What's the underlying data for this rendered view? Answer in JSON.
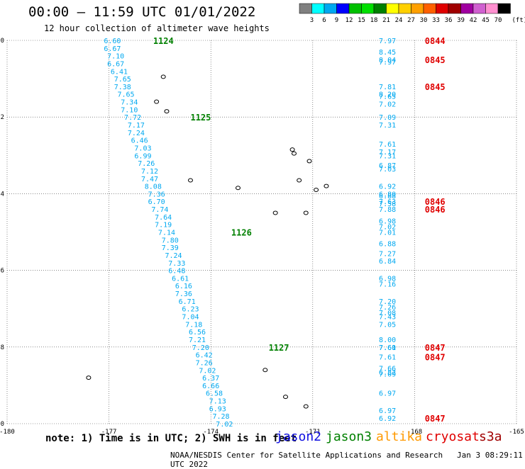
{
  "header": {
    "title": "00:00 – 11:59 UTC 01/01/2022",
    "subtitle": "12 hour collection of altimeter wave heights"
  },
  "colorbar": {
    "labels": [
      "3",
      "6",
      "9",
      "12",
      "15",
      "18",
      "21",
      "24",
      "27",
      "30",
      "33",
      "36",
      "39",
      "42",
      "45",
      "70"
    ],
    "unit": "(ft)",
    "colors": [
      "#808080",
      "#00ffff",
      "#00a8f0",
      "#0000ff",
      "#00c000",
      "#00e000",
      "#008000",
      "#ffff00",
      "#ffd000",
      "#ffa000",
      "#ff6000",
      "#e00000",
      "#a00000",
      "#a000a0",
      "#d060d0",
      "#ff90d0",
      "#000000"
    ]
  },
  "footer": {
    "note": "note:  1) Time is in UTC;  2) SWH is in feet",
    "credit": "NOAA/NESDIS Center for Satellite Applications and Research",
    "timestamp": "Jan  3 08:29:11 UTC 2022"
  },
  "legend": [
    {
      "label": "jason2",
      "color": "#1010e0"
    },
    {
      "label": "jason3",
      "color": "#008000"
    },
    {
      "label": "altika",
      "color": "#ff9900"
    },
    {
      "label": "cryosat",
      "color": "#e00000"
    },
    {
      "label": "s3a",
      "color": "#a00000"
    }
  ],
  "chart_data": {
    "type": "scatter",
    "xlim": [
      -180,
      -165
    ],
    "ylim": [
      -10,
      0
    ],
    "x_ticks": [
      "-180",
      "-177",
      "-174",
      "-171",
      "-168",
      "-165"
    ],
    "y_ticks": [
      "0",
      "-2",
      "-4",
      "-6",
      "-8",
      "-10"
    ],
    "grid": true,
    "series": [
      {
        "name": "jason3",
        "value_color": "#00a8f0",
        "time_color": "#008000",
        "points": [
          {
            "x": -176.9,
            "y": 0.0,
            "label": "6.60"
          },
          {
            "x": -176.9,
            "y": -0.2,
            "label": "6.67"
          },
          {
            "x": -176.8,
            "y": -0.4,
            "label": "7.10"
          },
          {
            "x": -176.8,
            "y": -0.6,
            "label": "6.67"
          },
          {
            "x": -176.7,
            "y": -0.8,
            "label": "6.41"
          },
          {
            "x": -176.6,
            "y": -1.0,
            "label": "7.65"
          },
          {
            "x": -176.6,
            "y": -1.2,
            "label": "7.38"
          },
          {
            "x": -176.5,
            "y": -1.4,
            "label": "7.65"
          },
          {
            "x": -176.4,
            "y": -1.6,
            "label": "7.34"
          },
          {
            "x": -176.4,
            "y": -1.8,
            "label": "7.10"
          },
          {
            "x": -176.3,
            "y": -2.0,
            "label": "7.72"
          },
          {
            "x": -176.2,
            "y": -2.2,
            "label": "7.17"
          },
          {
            "x": -176.2,
            "y": -2.4,
            "label": "7.24"
          },
          {
            "x": -176.1,
            "y": -2.6,
            "label": "6.46"
          },
          {
            "x": -176.0,
            "y": -2.8,
            "label": "7.03"
          },
          {
            "x": -176.0,
            "y": -3.0,
            "label": "6.99"
          },
          {
            "x": -175.9,
            "y": -3.2,
            "label": "7.26"
          },
          {
            "x": -175.8,
            "y": -3.4,
            "label": "7.12"
          },
          {
            "x": -175.8,
            "y": -3.6,
            "label": "7.47"
          },
          {
            "x": -175.7,
            "y": -3.8,
            "label": "8.08"
          },
          {
            "x": -175.6,
            "y": -4.0,
            "label": "7.36"
          },
          {
            "x": -175.6,
            "y": -4.2,
            "label": "6.70"
          },
          {
            "x": -175.5,
            "y": -4.4,
            "label": "7.74"
          },
          {
            "x": -175.4,
            "y": -4.6,
            "label": "7.64"
          },
          {
            "x": -175.4,
            "y": -4.8,
            "label": "7.19"
          },
          {
            "x": -175.3,
            "y": -5.0,
            "label": "7.14"
          },
          {
            "x": -175.2,
            "y": -5.2,
            "label": "7.80"
          },
          {
            "x": -175.2,
            "y": -5.4,
            "label": "7.39"
          },
          {
            "x": -175.1,
            "y": -5.6,
            "label": "7.24"
          },
          {
            "x": -175.0,
            "y": -5.8,
            "label": "7.33"
          },
          {
            "x": -175.0,
            "y": -6.0,
            "label": "6.48"
          },
          {
            "x": -174.9,
            "y": -6.2,
            "label": "6.61"
          },
          {
            "x": -174.8,
            "y": -6.4,
            "label": "6.16"
          },
          {
            "x": -174.8,
            "y": -6.6,
            "label": "7.36"
          },
          {
            "x": -174.7,
            "y": -6.8,
            "label": "6.71"
          },
          {
            "x": -174.6,
            "y": -7.0,
            "label": "6.23"
          },
          {
            "x": -174.6,
            "y": -7.2,
            "label": "7.04"
          },
          {
            "x": -174.5,
            "y": -7.4,
            "label": "7.18"
          },
          {
            "x": -174.4,
            "y": -7.6,
            "label": "6.56"
          },
          {
            "x": -174.4,
            "y": -7.8,
            "label": "7.21"
          },
          {
            "x": -174.3,
            "y": -8.0,
            "label": "7.20"
          },
          {
            "x": -174.2,
            "y": -8.2,
            "label": "6.42"
          },
          {
            "x": -174.2,
            "y": -8.4,
            "label": "7.26"
          },
          {
            "x": -174.1,
            "y": -8.6,
            "label": "7.02"
          },
          {
            "x": -174.0,
            "y": -8.8,
            "label": "6.37"
          },
          {
            "x": -174.0,
            "y": -9.0,
            "label": "6.66"
          },
          {
            "x": -173.9,
            "y": -9.2,
            "label": "6.58"
          },
          {
            "x": -173.8,
            "y": -9.4,
            "label": "7.13"
          },
          {
            "x": -173.8,
            "y": -9.6,
            "label": "6.93"
          },
          {
            "x": -173.7,
            "y": -9.8,
            "label": "7.28"
          },
          {
            "x": -173.6,
            "y": -10.0,
            "label": "7.02"
          }
        ],
        "times": [
          {
            "x": -175.7,
            "y": 0.0,
            "label": "1124"
          },
          {
            "x": -174.6,
            "y": -2.0,
            "label": "1125"
          },
          {
            "x": -173.4,
            "y": -5.0,
            "label": "1126"
          },
          {
            "x": -172.3,
            "y": -8.0,
            "label": "1127"
          }
        ]
      },
      {
        "name": "cryosat",
        "value_color": "#00a8f0",
        "time_color": "#e00000",
        "points": [
          {
            "x": -168.8,
            "y": 0.0,
            "label": "7.97"
          },
          {
            "x": -168.8,
            "y": -0.3,
            "label": "8.45"
          },
          {
            "x": -168.8,
            "y": -0.5,
            "label": "8.04"
          },
          {
            "x": -168.8,
            "y": -0.55,
            "label": "7.97"
          },
          {
            "x": -168.8,
            "y": -1.2,
            "label": "7.81"
          },
          {
            "x": -168.8,
            "y": -1.4,
            "label": "8.20"
          },
          {
            "x": -168.8,
            "y": -1.45,
            "label": "7.65"
          },
          {
            "x": -168.8,
            "y": -1.65,
            "label": "7.02"
          },
          {
            "x": -168.8,
            "y": -2.0,
            "label": "7.09"
          },
          {
            "x": -168.8,
            "y": -2.2,
            "label": "7.31"
          },
          {
            "x": -168.8,
            "y": -2.7,
            "label": "7.61"
          },
          {
            "x": -168.8,
            "y": -2.9,
            "label": "7.17"
          },
          {
            "x": -168.8,
            "y": -3.0,
            "label": "7.31"
          },
          {
            "x": -168.8,
            "y": -3.25,
            "label": "6.87"
          },
          {
            "x": -168.8,
            "y": -3.35,
            "label": "7.03"
          },
          {
            "x": -168.8,
            "y": -3.8,
            "label": "6.92"
          },
          {
            "x": -168.8,
            "y": -4.0,
            "label": "6.80"
          },
          {
            "x": -168.8,
            "y": -4.05,
            "label": "6.88"
          },
          {
            "x": -168.8,
            "y": -4.2,
            "label": "7.63"
          },
          {
            "x": -168.8,
            "y": -4.25,
            "label": "7.58"
          },
          {
            "x": -168.8,
            "y": -4.4,
            "label": "7.88"
          },
          {
            "x": -168.8,
            "y": -4.7,
            "label": "6.98"
          },
          {
            "x": -168.8,
            "y": -4.85,
            "label": "7.02"
          },
          {
            "x": -168.8,
            "y": -5.0,
            "label": "7.01"
          },
          {
            "x": -168.8,
            "y": -5.3,
            "label": "6.88"
          },
          {
            "x": -168.8,
            "y": -5.55,
            "label": "7.27"
          },
          {
            "x": -168.8,
            "y": -5.75,
            "label": "6.84"
          },
          {
            "x": -168.8,
            "y": -6.2,
            "label": "6.98"
          },
          {
            "x": -168.8,
            "y": -6.35,
            "label": "7.16"
          },
          {
            "x": -168.8,
            "y": -6.8,
            "label": "7.20"
          },
          {
            "x": -168.8,
            "y": -6.95,
            "label": "7.26"
          },
          {
            "x": -168.8,
            "y": -7.1,
            "label": "7.08"
          },
          {
            "x": -168.8,
            "y": -7.2,
            "label": "7.43"
          },
          {
            "x": -168.8,
            "y": -7.4,
            "label": "7.05"
          },
          {
            "x": -168.8,
            "y": -7.8,
            "label": "8.00"
          },
          {
            "x": -168.8,
            "y": -8.0,
            "label": "7.60"
          },
          {
            "x": -168.8,
            "y": -8.0,
            "label": "7.61"
          },
          {
            "x": -168.8,
            "y": -8.25,
            "label": "7.61"
          },
          {
            "x": -168.8,
            "y": -8.55,
            "label": "7.66"
          },
          {
            "x": -168.8,
            "y": -8.65,
            "label": "6.82"
          },
          {
            "x": -168.8,
            "y": -8.7,
            "label": "7.09"
          },
          {
            "x": -168.8,
            "y": -9.2,
            "label": "6.97"
          },
          {
            "x": -168.8,
            "y": -9.65,
            "label": "6.97"
          },
          {
            "x": -168.8,
            "y": -9.85,
            "label": "6.92"
          }
        ],
        "times": [
          {
            "x": -167.7,
            "y": 0.0,
            "label": "0844"
          },
          {
            "x": -167.7,
            "y": -0.5,
            "label": "0845"
          },
          {
            "x": -167.7,
            "y": -1.2,
            "label": "0845"
          },
          {
            "x": -167.7,
            "y": -4.2,
            "label": "0846"
          },
          {
            "x": -167.7,
            "y": -4.4,
            "label": "0846"
          },
          {
            "x": -167.7,
            "y": -8.0,
            "label": "0847"
          },
          {
            "x": -167.7,
            "y": -8.25,
            "label": "0847"
          },
          {
            "x": -167.7,
            "y": -9.85,
            "label": "0847"
          }
        ]
      }
    ],
    "islands": [
      {
        "x": -175.4,
        "y": -0.95
      },
      {
        "x": -175.6,
        "y": -1.6
      },
      {
        "x": -175.3,
        "y": -1.85
      },
      {
        "x": -174.6,
        "y": -3.65
      },
      {
        "x": -173.2,
        "y": -3.85
      },
      {
        "x": -171.6,
        "y": -2.85
      },
      {
        "x": -171.55,
        "y": -2.95
      },
      {
        "x": -171.1,
        "y": -3.15
      },
      {
        "x": -171.4,
        "y": -3.65
      },
      {
        "x": -170.9,
        "y": -3.9
      },
      {
        "x": -170.6,
        "y": -3.8
      },
      {
        "x": -172.1,
        "y": -4.5
      },
      {
        "x": -171.2,
        "y": -4.5
      },
      {
        "x": -172.4,
        "y": -8.6
      },
      {
        "x": -171.8,
        "y": -9.3
      },
      {
        "x": -171.2,
        "y": -9.55
      },
      {
        "x": -177.6,
        "y": -8.8
      }
    ]
  }
}
